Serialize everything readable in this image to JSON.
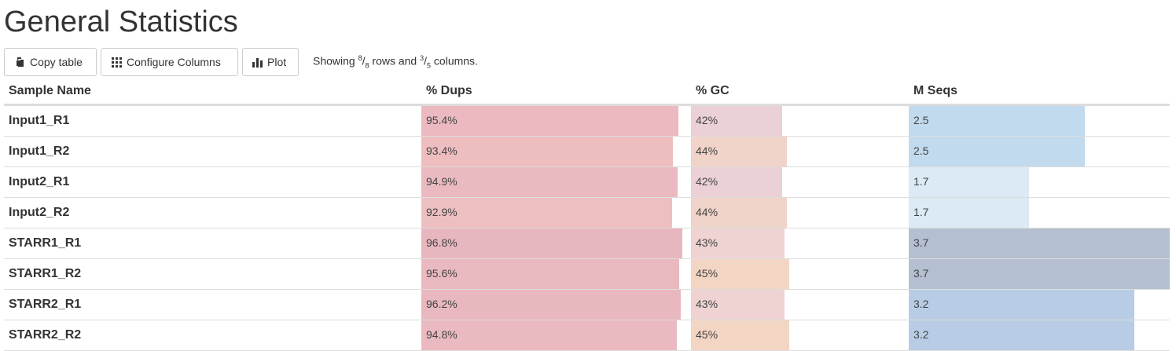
{
  "page": {
    "title": "General Statistics"
  },
  "toolbar": {
    "copy_label": "Copy table",
    "configure_label": "Configure Columns",
    "plot_label": "Plot",
    "showing_prefix": "Showing",
    "rows_shown": "8",
    "rows_total": "8",
    "rows_label": "rows and",
    "cols_shown": "3",
    "cols_total": "5",
    "cols_label": "columns."
  },
  "table": {
    "headers": {
      "name": "Sample Name",
      "dups": "% Dups",
      "gc": "% GC",
      "mseqs": "M Seqs"
    },
    "scales": {
      "dups_max": 100,
      "gc_max": 100,
      "mseqs_max": 3.7
    },
    "rows": [
      {
        "name": "Input1_R1",
        "dups": "95.4%",
        "dups_val": 95.4,
        "dups_color": "#ebb9bf",
        "gc": "42%",
        "gc_val": 42,
        "gc_color": "#ebd1d5",
        "mseqs": "2.5",
        "mseqs_val": 2.5,
        "mseqs_color": "#c2daed"
      },
      {
        "name": "Input1_R2",
        "dups": "93.4%",
        "dups_val": 93.4,
        "dups_color": "#edbdc0",
        "gc": "44%",
        "gc_val": 44,
        "gc_color": "#f0d3c9",
        "mseqs": "2.5",
        "mseqs_val": 2.5,
        "mseqs_color": "#c2daed"
      },
      {
        "name": "Input2_R1",
        "dups": "94.9%",
        "dups_val": 94.9,
        "dups_color": "#ebbac0",
        "gc": "42%",
        "gc_val": 42,
        "gc_color": "#ebd1d5",
        "mseqs": "1.7",
        "mseqs_val": 1.7,
        "mseqs_color": "#dbeaf4"
      },
      {
        "name": "Input2_R2",
        "dups": "92.9%",
        "dups_val": 92.9,
        "dups_color": "#eebfc1",
        "gc": "44%",
        "gc_val": 44,
        "gc_color": "#f0d3c9",
        "mseqs": "1.7",
        "mseqs_val": 1.7,
        "mseqs_color": "#dbeaf4"
      },
      {
        "name": "STARR1_R1",
        "dups": "96.8%",
        "dups_val": 96.8,
        "dups_color": "#e8b6be",
        "gc": "43%",
        "gc_val": 43,
        "gc_color": "#eed3d2",
        "mseqs": "3.7",
        "mseqs_val": 3.7,
        "mseqs_color": "#b4bfd1"
      },
      {
        "name": "STARR1_R2",
        "dups": "95.6%",
        "dups_val": 95.6,
        "dups_color": "#eab8bf",
        "gc": "45%",
        "gc_val": 45,
        "gc_color": "#f3d5c4",
        "mseqs": "3.7",
        "mseqs_val": 3.7,
        "mseqs_color": "#b4bfd1"
      },
      {
        "name": "STARR2_R1",
        "dups": "96.2%",
        "dups_val": 96.2,
        "dups_color": "#e9b7be",
        "gc": "43%",
        "gc_val": 43,
        "gc_color": "#eed3d2",
        "mseqs": "3.2",
        "mseqs_val": 3.2,
        "mseqs_color": "#b8cde5"
      },
      {
        "name": "STARR2_R2",
        "dups": "94.8%",
        "dups_val": 94.8,
        "dups_color": "#ebbac0",
        "gc": "45%",
        "gc_val": 45,
        "gc_color": "#f3d5c4",
        "mseqs": "3.2",
        "mseqs_val": 3.2,
        "mseqs_color": "#b8cde5"
      }
    ]
  }
}
